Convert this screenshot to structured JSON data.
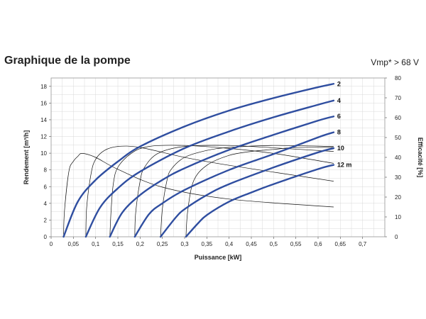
{
  "header": {
    "title": "Graphique de la pompe",
    "voltage_note": "Vmp* > 68 V"
  },
  "chart_data": {
    "type": "line",
    "xlabel": "Puissance [kW]",
    "ylabel": "Rendement [m³/h]",
    "y2label": "Efficacité [%]",
    "xlim": [
      0,
      0.75
    ],
    "ylim": [
      0,
      19
    ],
    "y2lim": [
      0,
      80
    ],
    "x_ticks": [
      "0",
      "0,05",
      "0,1",
      "0,15",
      "0,2",
      "0,25",
      "0,3",
      "0,35",
      "0,4",
      "0,45",
      "0,5",
      "0,55",
      "0,6",
      "0,65",
      "0,7"
    ],
    "y_ticks": [
      "0",
      "2",
      "4",
      "6",
      "8",
      "10",
      "12",
      "14",
      "16",
      "18"
    ],
    "y2_ticks": [
      "0",
      "10",
      "20",
      "30",
      "40",
      "50",
      "60",
      "70",
      "80"
    ],
    "grid": true,
    "colors": {
      "flow": "#2f4ea0",
      "efficiency": "#111111",
      "grid": "#d8d8d8"
    },
    "flow_series": [
      {
        "name": "2",
        "x": [
          0.028,
          0.06,
          0.1,
          0.15,
          0.2,
          0.3,
          0.4,
          0.5,
          0.6,
          0.635
        ],
        "values": [
          0,
          4.2,
          6.8,
          9.0,
          10.8,
          13.2,
          15.1,
          16.6,
          17.9,
          18.3
        ]
      },
      {
        "name": "4",
        "x": [
          0.078,
          0.11,
          0.15,
          0.2,
          0.3,
          0.4,
          0.5,
          0.6,
          0.635
        ],
        "values": [
          0,
          3.5,
          5.8,
          7.8,
          10.6,
          12.6,
          14.3,
          15.8,
          16.3
        ]
      },
      {
        "name": "6",
        "x": [
          0.132,
          0.16,
          0.2,
          0.25,
          0.3,
          0.4,
          0.5,
          0.6,
          0.635
        ],
        "values": [
          0,
          2.9,
          5.0,
          6.8,
          8.2,
          10.4,
          12.2,
          13.9,
          14.4
        ]
      },
      {
        "name": "8",
        "x": [
          0.188,
          0.22,
          0.25,
          0.3,
          0.4,
          0.5,
          0.6,
          0.635
        ],
        "values": [
          0,
          2.7,
          4.0,
          5.6,
          8.0,
          9.9,
          11.9,
          12.5
        ]
      },
      {
        "name": "10",
        "x": [
          0.246,
          0.28,
          0.3,
          0.35,
          0.4,
          0.5,
          0.6,
          0.635
        ],
        "values": [
          0,
          2.3,
          3.3,
          5.0,
          6.3,
          8.3,
          10.1,
          10.6
        ]
      },
      {
        "name": "12 m",
        "x": [
          0.303,
          0.33,
          0.35,
          0.4,
          0.45,
          0.5,
          0.6,
          0.635
        ],
        "values": [
          0,
          1.6,
          2.6,
          4.2,
          5.3,
          6.3,
          8.1,
          8.6
        ]
      }
    ],
    "efficiency_series": [
      {
        "x": [
          0.028,
          0.03,
          0.04,
          0.05,
          0.06,
          0.07,
          0.1,
          0.15,
          0.25,
          0.4,
          0.635
        ],
        "values": [
          0,
          13,
          33,
          38,
          40.5,
          42,
          40,
          34,
          25,
          19,
          15
        ]
      },
      {
        "x": [
          0.078,
          0.08,
          0.09,
          0.1,
          0.12,
          0.15,
          0.2,
          0.3,
          0.4,
          0.635
        ],
        "values": [
          0,
          15,
          32,
          39,
          43.5,
          45.5,
          45,
          40,
          36,
          28
        ]
      },
      {
        "x": [
          0.132,
          0.135,
          0.14,
          0.15,
          0.18,
          0.22,
          0.3,
          0.4,
          0.5,
          0.635
        ],
        "values": [
          0,
          14,
          27,
          35,
          42,
          45.5,
          46,
          44.5,
          42,
          37
        ]
      },
      {
        "x": [
          0.188,
          0.19,
          0.2,
          0.21,
          0.24,
          0.3,
          0.4,
          0.5,
          0.635
        ],
        "values": [
          0,
          12,
          28,
          35,
          42,
          45.5,
          46,
          44.8,
          43
        ]
      },
      {
        "x": [
          0.246,
          0.25,
          0.26,
          0.27,
          0.3,
          0.35,
          0.4,
          0.5,
          0.635
        ],
        "values": [
          0,
          14,
          28,
          34,
          40,
          43.5,
          45,
          46,
          45.5
        ]
      },
      {
        "x": [
          0.303,
          0.307,
          0.32,
          0.35,
          0.4,
          0.45,
          0.5,
          0.55,
          0.635
        ],
        "values": [
          0,
          13,
          28,
          36,
          41,
          43,
          44,
          45,
          45
        ]
      }
    ]
  }
}
